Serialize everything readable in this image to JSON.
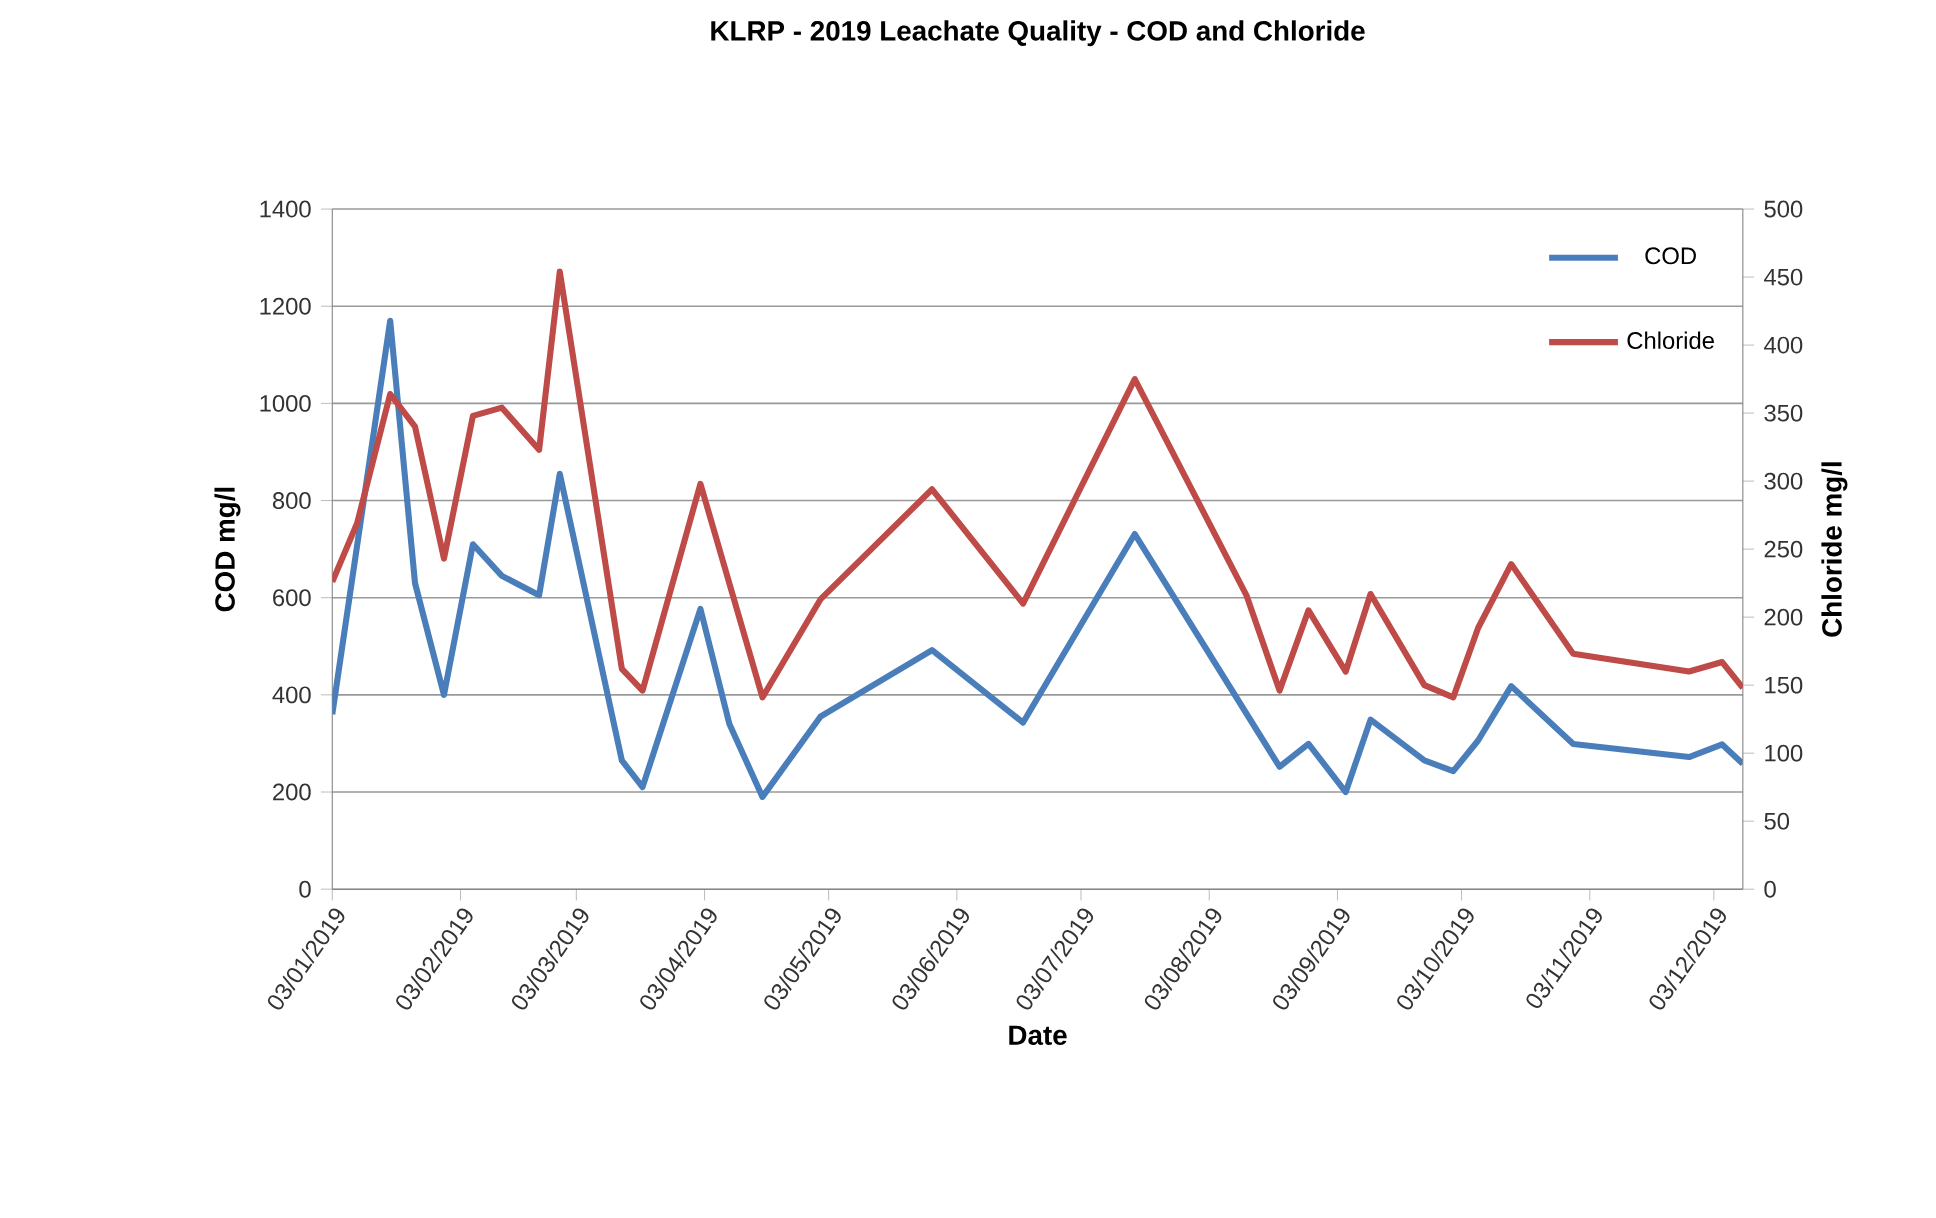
{
  "chart_data": {
    "type": "line",
    "title": "KLRP - 2019 Leachate Quality - COD and Chloride",
    "xlabel": "Date",
    "ylabel": "COD mg/l",
    "y2label": "Chloride mg/l",
    "xlim": [
      "2019-01-03",
      "2019-12-10"
    ],
    "xticks": [
      {
        "value": "2019-01-03",
        "label": "03/01/2019"
      },
      {
        "value": "2019-02-03",
        "label": "03/02/2019"
      },
      {
        "value": "2019-03-03",
        "label": "03/03/2019"
      },
      {
        "value": "2019-04-03",
        "label": "03/04/2019"
      },
      {
        "value": "2019-05-03",
        "label": "03/05/2019"
      },
      {
        "value": "2019-06-03",
        "label": "03/06/2019"
      },
      {
        "value": "2019-07-03",
        "label": "03/07/2019"
      },
      {
        "value": "2019-08-03",
        "label": "03/08/2019"
      },
      {
        "value": "2019-09-03",
        "label": "03/09/2019"
      },
      {
        "value": "2019-10-03",
        "label": "03/10/2019"
      },
      {
        "value": "2019-11-03",
        "label": "03/11/2019"
      },
      {
        "value": "2019-12-03",
        "label": "03/12/2019"
      }
    ],
    "ylim": [
      0,
      1400
    ],
    "yticks": [
      0,
      200,
      400,
      600,
      800,
      1000,
      1200,
      1400
    ],
    "y2lim": [
      0,
      500
    ],
    "y2ticks": [
      0,
      50,
      100,
      150,
      200,
      250,
      300,
      350,
      400,
      450,
      500
    ],
    "grid": "y",
    "legend": "top right",
    "marker": "none",
    "line_style": "solid",
    "series": [
      {
        "name": "COD",
        "color": "#4a7ebb",
        "x": [
          "2019-01-03",
          "2019-01-17",
          "2019-01-23",
          "2019-01-30",
          "2019-02-06",
          "2019-02-13",
          "2019-02-22",
          "2019-02-27",
          "2019-03-14",
          "2019-03-19",
          "2019-04-02",
          "2019-04-09",
          "2019-04-17",
          "2019-05-01",
          "2019-05-28",
          "2019-06-19",
          "2019-07-16",
          "2019-08-20",
          "2019-08-27",
          "2019-09-05",
          "2019-09-11",
          "2019-09-24",
          "2019-10-01",
          "2019-10-07",
          "2019-10-15",
          "2019-10-30",
          "2019-11-27",
          "2019-12-05",
          "2019-12-10"
        ],
        "values": [
          360,
          1170,
          630,
          400,
          710,
          645,
          605,
          855,
          265,
          210,
          577,
          340,
          190,
          355,
          492,
          343,
          731,
          252,
          299,
          200,
          349,
          265,
          243,
          306,
          418,
          299,
          272,
          298,
          258
        ]
      },
      {
        "name": "Chloride",
        "color": "#be4b48",
        "axis": "y2",
        "x": [
          "2019-01-03",
          "2019-01-09",
          "2019-01-17",
          "2019-01-23",
          "2019-01-30",
          "2019-02-06",
          "2019-02-13",
          "2019-02-22",
          "2019-02-27",
          "2019-03-14",
          "2019-03-19",
          "2019-04-02",
          "2019-04-17",
          "2019-05-01",
          "2019-05-28",
          "2019-06-19",
          "2019-07-16",
          "2019-08-12",
          "2019-08-20",
          "2019-08-27",
          "2019-09-05",
          "2019-09-11",
          "2019-09-24",
          "2019-10-01",
          "2019-10-07",
          "2019-10-15",
          "2019-10-30",
          "2019-11-27",
          "2019-12-05",
          "2019-12-10"
        ],
        "values": [
          226,
          269,
          364,
          340,
          243,
          348,
          354,
          323,
          454,
          162,
          146,
          298,
          141,
          213,
          294,
          210,
          375,
          216,
          146,
          205,
          160,
          217,
          150,
          141,
          192,
          239,
          173,
          160,
          167,
          148
        ]
      }
    ]
  }
}
